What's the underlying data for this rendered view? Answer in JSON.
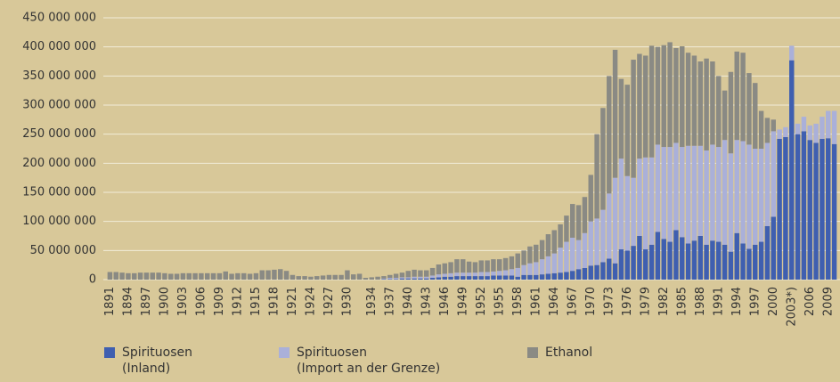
{
  "chart_data": {
    "type": "stacked-bar",
    "categories": [
      "1891",
      null,
      null,
      "1894",
      null,
      null,
      "1897",
      null,
      null,
      "1900",
      null,
      null,
      "1903",
      null,
      null,
      "1906",
      null,
      null,
      "1909",
      null,
      null,
      "1912",
      null,
      null,
      "1915",
      null,
      null,
      "1918",
      null,
      null,
      "1921",
      null,
      null,
      "1924",
      null,
      null,
      "1927",
      null,
      null,
      "1930",
      null,
      null,
      null,
      "1934",
      null,
      null,
      "1937",
      null,
      null,
      "1940",
      null,
      null,
      "1943",
      null,
      null,
      "1946",
      null,
      null,
      "1949",
      null,
      null,
      "1952",
      null,
      null,
      "1955",
      null,
      null,
      "1958",
      null,
      null,
      "1961",
      null,
      null,
      "1964",
      null,
      null,
      "1967",
      null,
      null,
      "1970",
      null,
      null,
      "1973",
      null,
      null,
      "1976",
      null,
      null,
      "1979",
      null,
      null,
      "1982",
      null,
      null,
      "1985",
      null,
      null,
      "1988",
      null,
      null,
      "1991",
      null,
      null,
      "1994",
      null,
      null,
      "1997",
      null,
      null,
      "2000",
      null,
      null,
      "2003*)",
      null,
      null,
      "2006",
      null,
      null,
      "2009",
      null
    ],
    "series": [
      {
        "name": "Spirituosen\n(Inland)",
        "color": "#3f5fb0",
        "values": [
          0,
          0,
          0,
          0,
          0,
          0,
          0,
          0,
          0,
          0,
          0,
          0,
          0,
          0,
          0,
          0,
          0,
          0,
          0,
          0,
          0,
          0,
          0,
          0,
          0,
          0,
          0,
          0,
          0,
          0,
          0,
          0,
          0,
          0,
          0,
          0,
          0,
          0,
          0,
          0,
          0,
          0,
          0,
          0,
          0,
          1000000,
          1000000,
          1000000,
          2000000,
          2000000,
          2000000,
          2000000,
          2000000,
          3000000,
          4000000,
          5000000,
          5000000,
          6000000,
          6000000,
          6000000,
          6000000,
          6000000,
          6000000,
          7000000,
          7000000,
          7000000,
          7000000,
          5000000,
          8000000,
          8000000,
          8000000,
          9000000,
          10000000,
          11000000,
          12000000,
          13000000,
          15000000,
          18000000,
          20000000,
          24000000,
          25000000,
          30000000,
          36000000,
          28000000,
          52000000,
          50000000,
          58000000,
          75000000,
          52000000,
          60000000,
          82000000,
          70000000,
          65000000,
          85000000,
          73000000,
          62000000,
          67000000,
          75000000,
          60000000,
          67000000,
          65000000,
          60000000,
          48000000,
          80000000,
          62000000,
          53000000,
          60000000,
          65000000,
          92000000,
          108000000,
          242000000,
          245000000,
          377000000,
          250000000,
          255000000,
          240000000,
          235000000,
          242000000,
          243000000,
          233000000
        ]
      },
      {
        "name": "Spirituosen\n(Import an der Grenze)",
        "color": "#aab0d9",
        "values": [
          0,
          0,
          0,
          0,
          0,
          0,
          0,
          0,
          0,
          0,
          0,
          0,
          0,
          0,
          0,
          0,
          0,
          0,
          0,
          0,
          0,
          0,
          0,
          0,
          0,
          0,
          0,
          0,
          0,
          0,
          0,
          0,
          0,
          0,
          0,
          0,
          0,
          0,
          0,
          0,
          0,
          0,
          0,
          0,
          0,
          1000000,
          2000000,
          2000000,
          2000000,
          2000000,
          3000000,
          3000000,
          3000000,
          4000000,
          5000000,
          5000000,
          6000000,
          6000000,
          6000000,
          6000000,
          6000000,
          7000000,
          7000000,
          7000000,
          8000000,
          9000000,
          11000000,
          15000000,
          17000000,
          20000000,
          22000000,
          26000000,
          30000000,
          34000000,
          43000000,
          52000000,
          57000000,
          50000000,
          60000000,
          76000000,
          80000000,
          90000000,
          112000000,
          147000000,
          156000000,
          128000000,
          117000000,
          133000000,
          158000000,
          150000000,
          150000000,
          158000000,
          163000000,
          150000000,
          155000000,
          168000000,
          163000000,
          155000000,
          162000000,
          165000000,
          163000000,
          180000000,
          169000000,
          160000000,
          176000000,
          179000000,
          165000000,
          160000000,
          143000000,
          147000000,
          16000000,
          17000000,
          25000000,
          18000000,
          25000000,
          25000000,
          33000000,
          38000000,
          47000000,
          57000000
        ]
      },
      {
        "name": "Ethanol",
        "color": "#8a8a84",
        "values": [
          13000000,
          13000000,
          12000000,
          11000000,
          11000000,
          12000000,
          12000000,
          12000000,
          12000000,
          11000000,
          10000000,
          10000000,
          11000000,
          11000000,
          11000000,
          11000000,
          11000000,
          11000000,
          11000000,
          14000000,
          10000000,
          11000000,
          11000000,
          10000000,
          11000000,
          16000000,
          16000000,
          17000000,
          18000000,
          15000000,
          8000000,
          6000000,
          6000000,
          5000000,
          6000000,
          7000000,
          8000000,
          8000000,
          8000000,
          16000000,
          9000000,
          10000000,
          3000000,
          4000000,
          5000000,
          4000000,
          5000000,
          7000000,
          8000000,
          11000000,
          12000000,
          11000000,
          11000000,
          13000000,
          17000000,
          18000000,
          19000000,
          23000000,
          23000000,
          19000000,
          18000000,
          20000000,
          20000000,
          21000000,
          20000000,
          21000000,
          22000000,
          25000000,
          25000000,
          29000000,
          30000000,
          33000000,
          38000000,
          40000000,
          40000000,
          45000000,
          58000000,
          60000000,
          62000000,
          80000000,
          145000000,
          175000000,
          202000000,
          220000000,
          137000000,
          157000000,
          203000000,
          180000000,
          175000000,
          192000000,
          168000000,
          175000000,
          180000000,
          163000000,
          173000000,
          160000000,
          155000000,
          145000000,
          158000000,
          143000000,
          122000000,
          85000000,
          140000000,
          152000000,
          152000000,
          123000000,
          113000000,
          65000000,
          43000000,
          20000000,
          0,
          0,
          0,
          0,
          0,
          0,
          0,
          0,
          0,
          0
        ]
      }
    ],
    "ylim": [
      0,
      450000000
    ],
    "yticks": [
      0,
      {
        "value": 50000000,
        "label": "50 000 000"
      },
      {
        "value": 100000000,
        "label": "100 000 000"
      },
      {
        "value": 150000000,
        "label": "150 000 000"
      },
      {
        "value": 200000000,
        "label": "200 000 000"
      },
      {
        "value": 250000000,
        "label": "250 000 000"
      },
      {
        "value": 300000000,
        "label": "300 000 000"
      },
      {
        "value": 350000000,
        "label": "350 000 000"
      },
      {
        "value": 400000000,
        "label": "400 000 000"
      },
      {
        "value": 450000000,
        "label": "450 000 000"
      }
    ],
    "grid": true
  }
}
